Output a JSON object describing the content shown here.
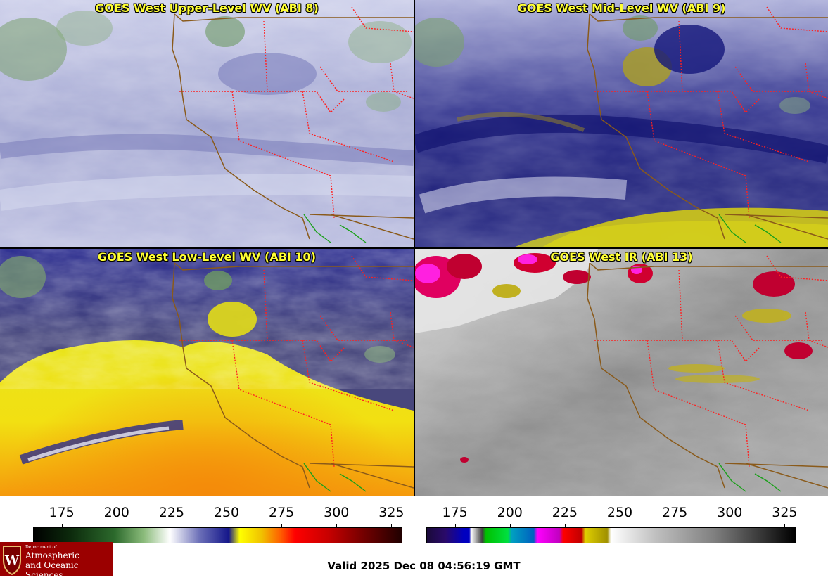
{
  "panels": [
    {
      "title": "GOES West Upper-Level WV (ABI 8)"
    },
    {
      "title": "GOES West Mid-Level WV (ABI 9)"
    },
    {
      "title": "GOES West Low-Level WV (ABI 10)"
    },
    {
      "title": "GOES West IR (ABI 13)"
    }
  ],
  "colorbar_wv": {
    "ticks": [
      "175",
      "200",
      "225",
      "250",
      "275",
      "300",
      "325"
    ],
    "tick_values": [
      175,
      200,
      225,
      250,
      275,
      300,
      325
    ],
    "range": [
      162,
      330
    ]
  },
  "colorbar_ir": {
    "ticks": [
      "175",
      "200",
      "225",
      "250",
      "275",
      "300",
      "325"
    ],
    "tick_values": [
      175,
      200,
      225,
      250,
      275,
      300,
      325
    ],
    "range": [
      162,
      330
    ]
  },
  "logo": {
    "line1": "Department of",
    "line2": "Atmospheric",
    "line3": "and Oceanic Sciences"
  },
  "valid_time": "Valid 2025 Dec 08 04:56:19 GMT",
  "colors": {
    "title_text": "#ffff33",
    "state_border": "#ff2020",
    "coastline": "#8a5a1a",
    "mexico_border": "#1aa01a",
    "logo_bg": "#9b0000"
  }
}
